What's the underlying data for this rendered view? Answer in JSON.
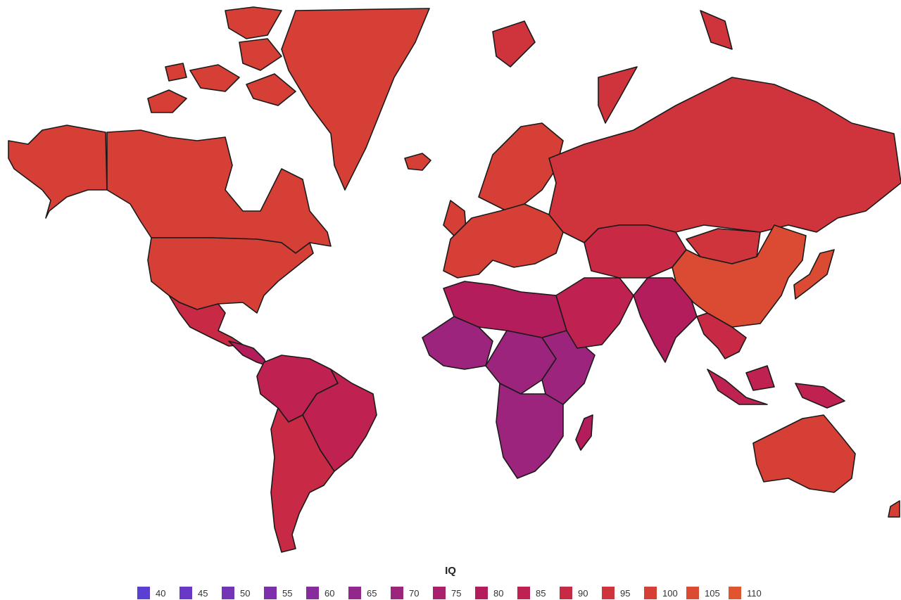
{
  "legend": {
    "title": "IQ",
    "items": [
      {
        "label": "40",
        "color": "#5b3fd1"
      },
      {
        "label": "45",
        "color": "#6a38c6"
      },
      {
        "label": "50",
        "color": "#7434b8"
      },
      {
        "label": "55",
        "color": "#7d30aa"
      },
      {
        "label": "60",
        "color": "#872c9c"
      },
      {
        "label": "65",
        "color": "#92288c"
      },
      {
        "label": "70",
        "color": "#9d247c"
      },
      {
        "label": "75",
        "color": "#a9206c"
      },
      {
        "label": "80",
        "color": "#b41d5c"
      },
      {
        "label": "85",
        "color": "#bf2150"
      },
      {
        "label": "90",
        "color": "#c82a45"
      },
      {
        "label": "95",
        "color": "#cf343c"
      },
      {
        "label": "100",
        "color": "#d53f36"
      },
      {
        "label": "105",
        "color": "#db4a32"
      },
      {
        "label": "110",
        "color": "#e1552e"
      }
    ]
  },
  "regions": [
    {
      "name": "Canada",
      "value": 100
    },
    {
      "name": "Alaska",
      "value": 100
    },
    {
      "name": "Greenland",
      "value": 100
    },
    {
      "name": "United States",
      "value": 98
    },
    {
      "name": "Mexico",
      "value": 88
    },
    {
      "name": "Central America",
      "value": 80
    },
    {
      "name": "South America North",
      "value": 84
    },
    {
      "name": "Brazil",
      "value": 85
    },
    {
      "name": "South America South",
      "value": 92
    },
    {
      "name": "Europe",
      "value": 98
    },
    {
      "name": "Scandinavia",
      "value": 99
    },
    {
      "name": "Russia",
      "value": 97
    },
    {
      "name": "North Africa",
      "value": 80
    },
    {
      "name": "West Africa",
      "value": 68
    },
    {
      "name": "Central Africa",
      "value": 70
    },
    {
      "name": "East Africa",
      "value": 72
    },
    {
      "name": "Southern Africa",
      "value": 70
    },
    {
      "name": "Middle East",
      "value": 85
    },
    {
      "name": "Central Asia",
      "value": 90
    },
    {
      "name": "India",
      "value": 80
    },
    {
      "name": "China",
      "value": 105
    },
    {
      "name": "Mongolia",
      "value": 95
    },
    {
      "name": "Japan",
      "value": 105
    },
    {
      "name": "Southeast Asia",
      "value": 88
    },
    {
      "name": "Indonesia",
      "value": 84
    },
    {
      "name": "Australia",
      "value": 100
    },
    {
      "name": "Madagascar",
      "value": 82
    },
    {
      "name": "Iceland",
      "value": 100
    },
    {
      "name": "United Kingdom",
      "value": 100
    }
  ]
}
